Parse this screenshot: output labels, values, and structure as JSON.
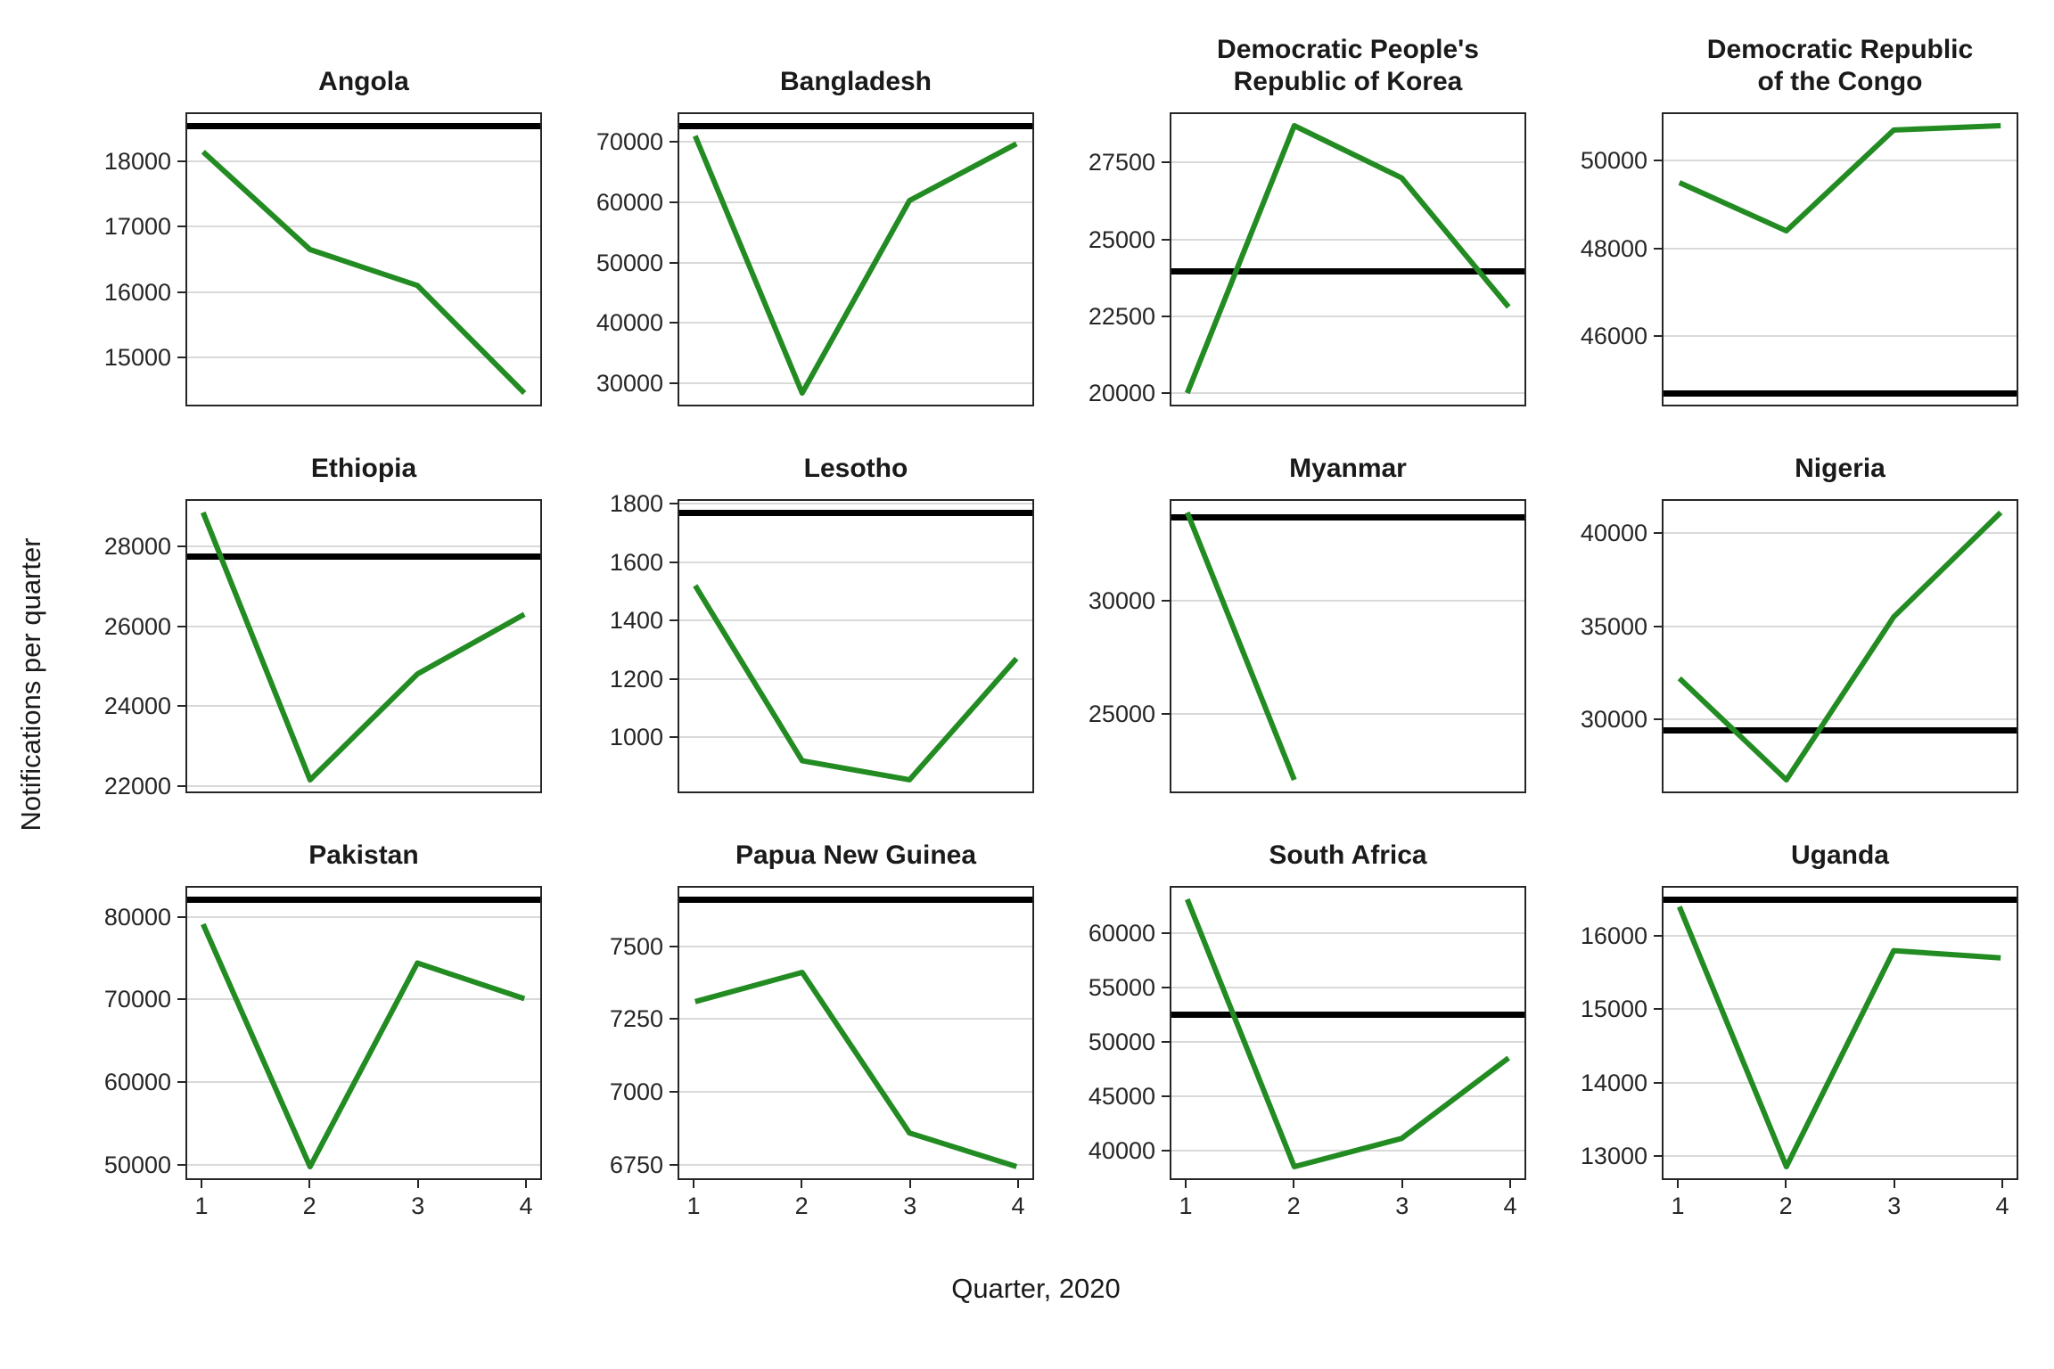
{
  "x_axis_title": "Quarter, 2020",
  "y_axis_title": "Notifications per quarter",
  "colors": {
    "series_line": "#228B22",
    "reference_line": "#000000",
    "gridline": "#d9d9d9",
    "panel_border": "#262626",
    "tick_text": "#262626",
    "title_text": "#1a1a1a"
  },
  "chart_data": {
    "type": "line",
    "title": "",
    "xlabel": "Quarter, 2020",
    "ylabel": "Notifications per quarter",
    "x": [
      1,
      2,
      3,
      4
    ],
    "x_tick_labels": [
      "1",
      "2",
      "3",
      "4"
    ],
    "legend": "none",
    "grid": "horizontal major gridlines only",
    "layout": {
      "rows": 3,
      "cols": 4,
      "free_y_scales": true
    },
    "facets": [
      {
        "title": "Angola",
        "values": [
          18150,
          16650,
          16100,
          14450
        ],
        "reference_line": 18550,
        "ylim": [
          14245,
          18755
        ],
        "yticks": [
          15000,
          16000,
          17000,
          18000
        ]
      },
      {
        "title": "Bangladesh",
        "values": [
          71000,
          28400,
          60300,
          69700
        ],
        "reference_line": 72700,
        "ylim": [
          26185,
          74915
        ],
        "yticks": [
          30000,
          40000,
          50000,
          60000,
          70000
        ]
      },
      {
        "title": "Democratic People's\nRepublic of Korea",
        "values": [
          20000,
          28700,
          27000,
          22800
        ],
        "reference_line": 23950,
        "ylim": [
          19565,
          29135
        ],
        "yticks": [
          20000,
          22500,
          25000,
          27500
        ]
      },
      {
        "title": "Democratic Republic\nof the Congo",
        "values": [
          49500,
          48400,
          50700,
          50800
        ],
        "reference_line": 44700,
        "ylim": [
          44395,
          51105
        ],
        "yticks": [
          46000,
          48000,
          50000
        ]
      },
      {
        "title": "Ethiopia",
        "values": [
          28850,
          22150,
          24800,
          26300
        ],
        "reference_line": 27750,
        "ylim": [
          21815,
          29185
        ],
        "yticks": [
          22000,
          24000,
          26000,
          28000
        ]
      },
      {
        "title": "Lesotho",
        "values": [
          1520,
          920,
          855,
          1270
        ],
        "reference_line": 1770,
        "ylim": [
          809,
          1816
        ],
        "yticks": [
          1000,
          1200,
          1400,
          1600,
          1800
        ]
      },
      {
        "title": "Myanmar",
        "values": [
          33900,
          22100,
          null,
          null
        ],
        "reference_line": 33700,
        "ylim": [
          21510,
          34490
        ],
        "yticks": [
          25000,
          30000
        ]
      },
      {
        "title": "Nigeria",
        "values": [
          32200,
          26750,
          35500,
          41100
        ],
        "reference_line": 29400,
        "ylim": [
          26033,
          41818
        ],
        "yticks": [
          30000,
          35000,
          40000
        ]
      },
      {
        "title": "Pakistan",
        "values": [
          79100,
          49800,
          74400,
          70100
        ],
        "reference_line": 82100,
        "ylim": [
          48185,
          83715
        ],
        "yticks": [
          50000,
          60000,
          70000,
          80000
        ]
      },
      {
        "title": "Papua New Guinea",
        "values": [
          7310,
          7410,
          6860,
          6745
        ],
        "reference_line": 7660,
        "ylim": [
          6699,
          7706
        ],
        "yticks": [
          6750,
          7000,
          7250,
          7500
        ]
      },
      {
        "title": "South Africa",
        "values": [
          63100,
          38500,
          41100,
          48500
        ],
        "reference_line": 52500,
        "ylim": [
          37270,
          64330
        ],
        "yticks": [
          40000,
          45000,
          50000,
          55000,
          60000
        ]
      },
      {
        "title": "Uganda",
        "values": [
          16400,
          12850,
          15800,
          15700
        ],
        "reference_line": 16500,
        "ylim": [
          12668,
          16683
        ],
        "yticks": [
          13000,
          14000,
          15000,
          16000
        ]
      }
    ]
  }
}
